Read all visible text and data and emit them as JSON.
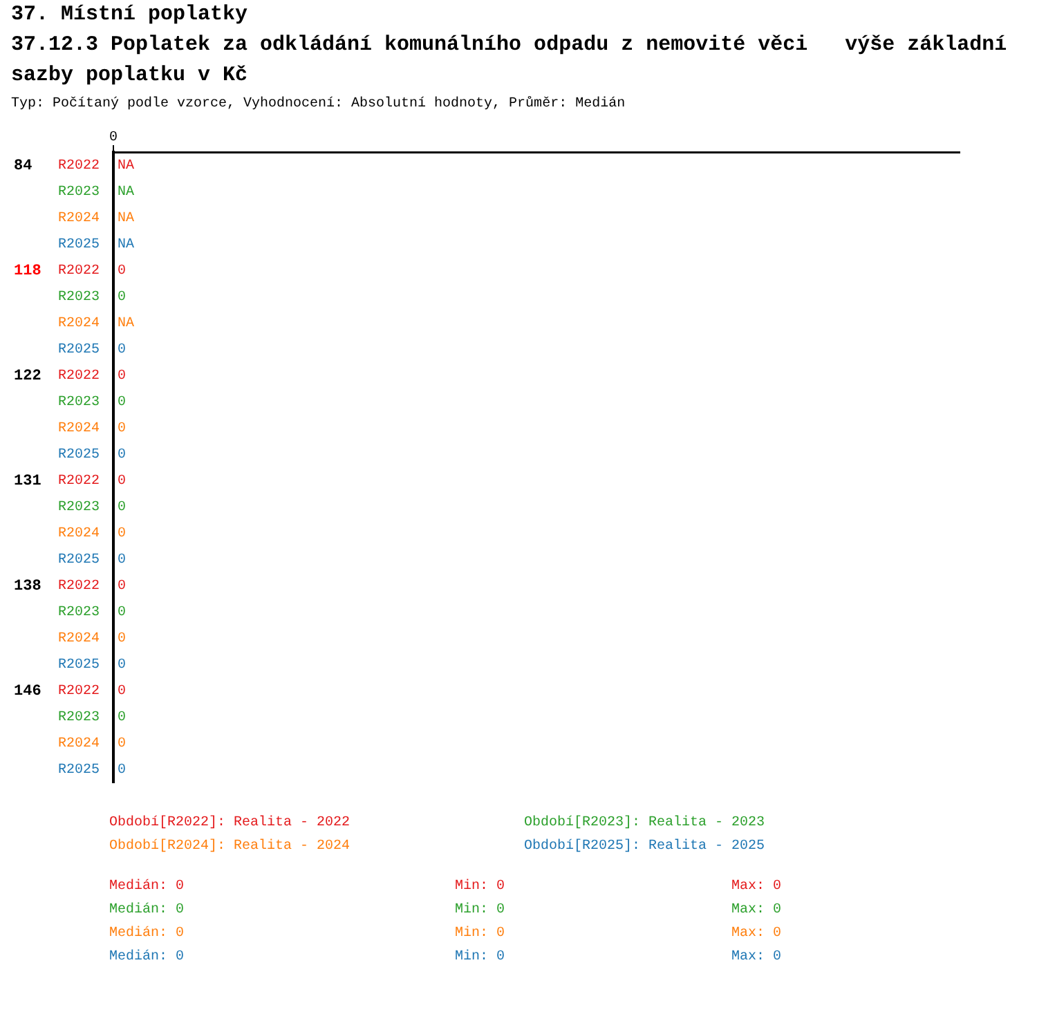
{
  "chart_data": {
    "type": "other",
    "title": "37. Místní poplatky",
    "subtitle": "37.12.3 Poplatek za odkládání komunálního odpadu z nemovité věci   výše základní sazby poplatku v Kč",
    "xlabel": "Typ: Počítaný podle vzorce, Vyhodnocení: Absolutní hodnoty, Průměr: Medián",
    "categories": [
      "R2022",
      "R2023",
      "R2024",
      "R2025"
    ],
    "colors": [
      "#e41a1c",
      "#2ca02c",
      "#ff7f0e",
      "#1f77b4"
    ],
    "series": [
      {
        "name": "84",
        "color": "#000000",
        "values": [
          null,
          null,
          null,
          null
        ],
        "value_labels": [
          "NA",
          "NA",
          "NA",
          "NA"
        ]
      },
      {
        "name": "118",
        "color": "#ff0000",
        "values": [
          0,
          0,
          null,
          0
        ],
        "value_labels": [
          "0",
          "0",
          "NA",
          "0"
        ]
      },
      {
        "name": "122",
        "color": "#000000",
        "values": [
          0,
          0,
          0,
          0
        ],
        "value_labels": [
          "0",
          "0",
          "0",
          "0"
        ]
      },
      {
        "name": "131",
        "color": "#000000",
        "values": [
          0,
          0,
          0,
          0
        ],
        "value_labels": [
          "0",
          "0",
          "0",
          "0"
        ]
      },
      {
        "name": "138",
        "color": "#000000",
        "values": [
          0,
          0,
          0,
          0
        ],
        "value_labels": [
          "0",
          "0",
          "0",
          "0"
        ]
      },
      {
        "name": "146",
        "color": "#000000",
        "values": [
          0,
          0,
          0,
          0
        ],
        "value_labels": [
          "0",
          "0",
          "0",
          "0"
        ]
      }
    ],
    "annotations": [
      "0",
      "Období[R2022]: Realita - 2022",
      "Období[R2023]: Realita - 2023",
      "Období[R2024]: Realita - 2024",
      "Období[R2025]: Realita - 2025",
      "Medián: 0",
      "Min: 0",
      "Max: 0",
      "Medián: 0",
      "Min: 0",
      "Max: 0",
      "Medián: 0",
      "Min: 0",
      "Max: 0",
      "Medián: 0",
      "Min: 0",
      "Max: 0"
    ]
  }
}
